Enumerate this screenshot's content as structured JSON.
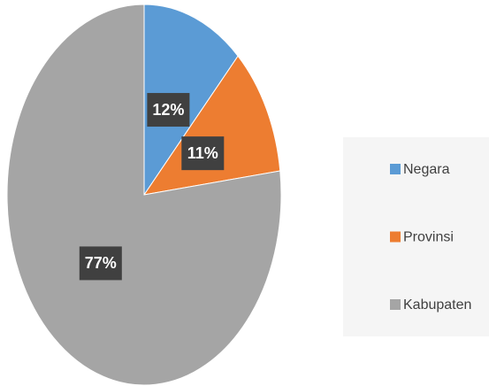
{
  "chart_data": {
    "type": "pie",
    "categories": [
      "Negara",
      "Provinsi",
      "Kabupaten"
    ],
    "values": [
      12,
      11,
      77
    ],
    "value_labels": [
      "12%",
      "11%",
      "77%"
    ],
    "colors": [
      "#5b9bd5",
      "#ed7d31",
      "#a5a5a5"
    ],
    "legend": "right"
  }
}
